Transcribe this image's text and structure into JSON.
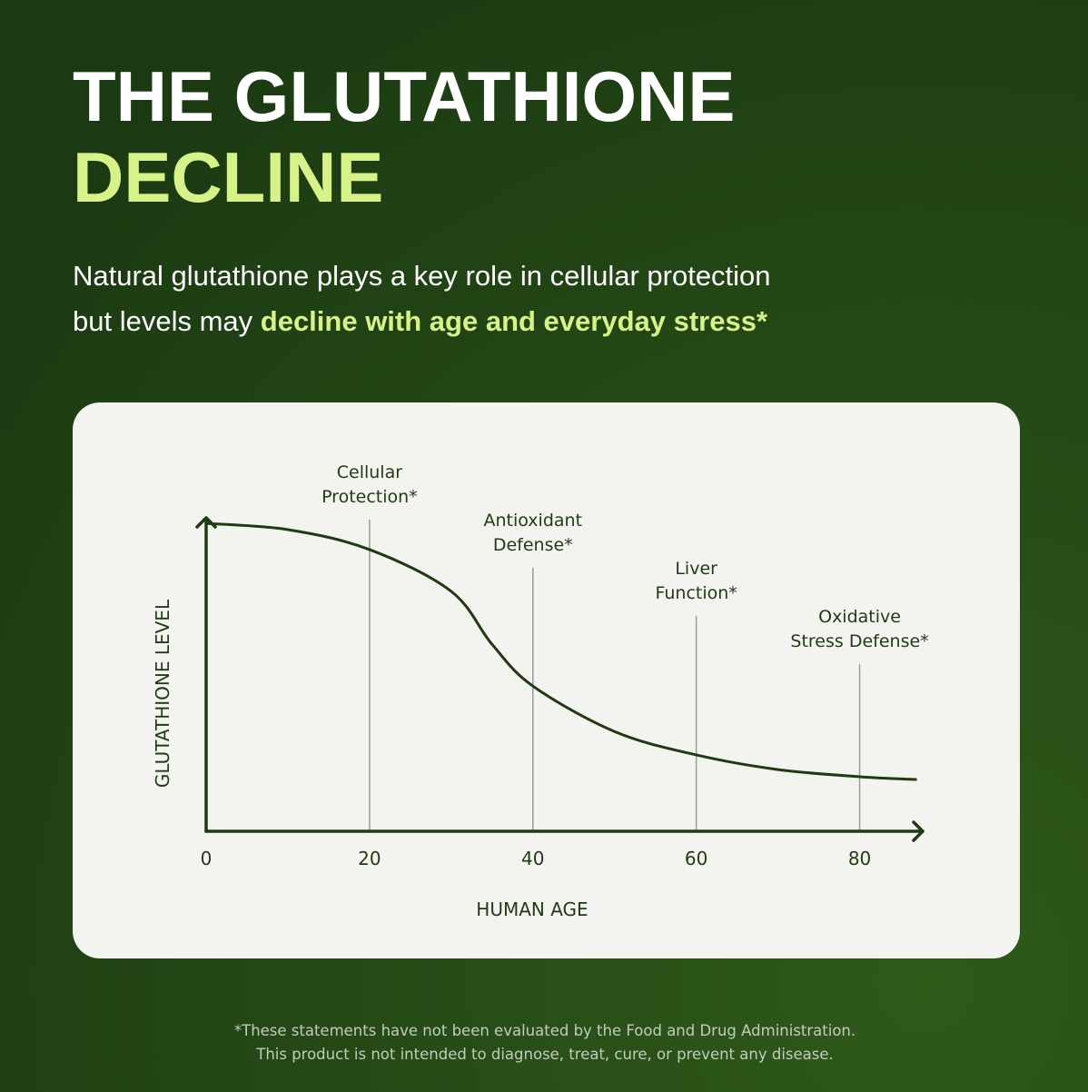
{
  "header": {
    "title_line1": "THE GLUTATHIONE",
    "title_line2": "DECLINE",
    "subtitle_line1": "Natural glutathione plays a key role in cellular protection",
    "subtitle_line2_plain": "but levels may",
    "subtitle_line2_highlight": "decline with age and everyday stress*"
  },
  "chart_data": {
    "type": "line",
    "x": [
      0,
      10,
      20,
      30,
      35,
      40,
      50,
      60,
      70,
      80,
      87
    ],
    "values": [
      98.8,
      96.8,
      90.4,
      77,
      60,
      46.6,
      32,
      24.5,
      19.8,
      17.5,
      16.6
    ],
    "color": "#1f3a14",
    "xlim": [
      0,
      87.5
    ],
    "ylim": [
      0,
      100
    ],
    "xticks": [
      0,
      20,
      40,
      60,
      80
    ],
    "x_label": "HUMAN AGE",
    "y_label": "GLUTATHIONE LEVEL",
    "annotations": [
      {
        "x": 20,
        "lines": [
          "Cellular",
          "Protection*"
        ]
      },
      {
        "x": 40,
        "lines": [
          "Antioxidant",
          "Defense*"
        ]
      },
      {
        "x": 60,
        "lines": [
          "Liver",
          "Function*"
        ]
      },
      {
        "x": 80,
        "lines": [
          "Oxidative",
          "Stress Defense*"
        ]
      }
    ]
  },
  "footnote": {
    "line1": "*These statements have not been evaluated by the Food and Drug Administration.",
    "line2": "This product is not intended to diagnose, treat, cure, or prevent any disease."
  }
}
